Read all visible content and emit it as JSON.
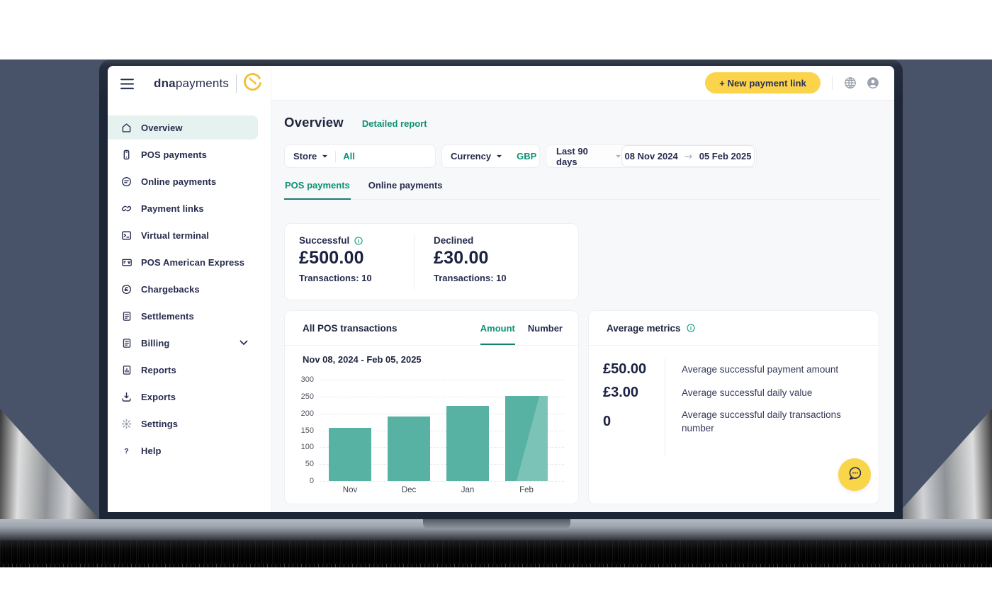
{
  "sidebar": {
    "brand": {
      "bold": "dna",
      "light": "payments"
    },
    "items": [
      {
        "label": "Overview",
        "icon": "home",
        "active": true
      },
      {
        "label": "POS payments",
        "icon": "pos"
      },
      {
        "label": "Online payments",
        "icon": "online"
      },
      {
        "label": "Payment links",
        "icon": "link"
      },
      {
        "label": "Virtual terminal",
        "icon": "terminal"
      },
      {
        "label": "POS American Express",
        "icon": "amex"
      },
      {
        "label": "Chargebacks",
        "icon": "chargeback"
      },
      {
        "label": "Settlements",
        "icon": "doc"
      },
      {
        "label": "Billing",
        "icon": "doc",
        "chevron": true
      },
      {
        "label": "Reports",
        "icon": "report"
      },
      {
        "label": "Exports",
        "icon": "export"
      },
      {
        "label": "Settings",
        "icon": "gear"
      },
      {
        "label": "Help",
        "icon": "help"
      }
    ]
  },
  "header": {
    "new_payment_link": "+ New payment link"
  },
  "overview": {
    "title": "Overview",
    "detailed_report": "Detailed report",
    "filters": {
      "store_label": "Store",
      "store_value": "All",
      "currency_label": "Currency",
      "currency_value": "GBP",
      "range_label": "Last 90 days",
      "date_from": "08 Nov 2024",
      "date_to": "05 Feb 2025"
    },
    "tabs": {
      "pos": "POS payments",
      "online": "Online payments"
    },
    "summary": {
      "successful_label": "Successful",
      "successful_amount": "£500.00",
      "successful_transactions": "Transactions: 10",
      "declined_label": "Declined",
      "declined_amount": "£30.00",
      "declined_transactions": "Transactions: 10"
    },
    "chart_card": {
      "title": "All POS transactions",
      "tab_amount": "Amount",
      "tab_number": "Number",
      "range": "Nov 08, 2024 - Feb 05, 2025"
    },
    "metrics": {
      "title": "Average metrics",
      "rows": [
        {
          "value": "£50.00",
          "label": "Average successful payment amount"
        },
        {
          "value": "£3.00",
          "label": "Average successful daily value"
        },
        {
          "value": "0",
          "label": "Average successful daily transactions number"
        }
      ]
    }
  },
  "chart_data": {
    "type": "bar",
    "title": "All POS transactions",
    "categories": [
      "Nov",
      "Dec",
      "Jan",
      "Feb"
    ],
    "values": [
      157,
      190,
      222,
      252
    ],
    "xlabel": "",
    "ylabel": "",
    "ylim": [
      0,
      300
    ],
    "yticks": [
      0,
      50,
      100,
      150,
      200,
      250,
      300
    ],
    "grid": true,
    "legend": false,
    "bar_color": "#58B2A4",
    "highlight_last_bar": true
  },
  "colors": {
    "accent_teal": "#0E9175",
    "bar_teal": "#58B2A4",
    "brand_yellow": "#FBD44C",
    "navy_text": "#262B4E",
    "active_item_bg": "#E6F2EF",
    "screen_background": "#48536A",
    "content_background": "#F7F8F9"
  }
}
